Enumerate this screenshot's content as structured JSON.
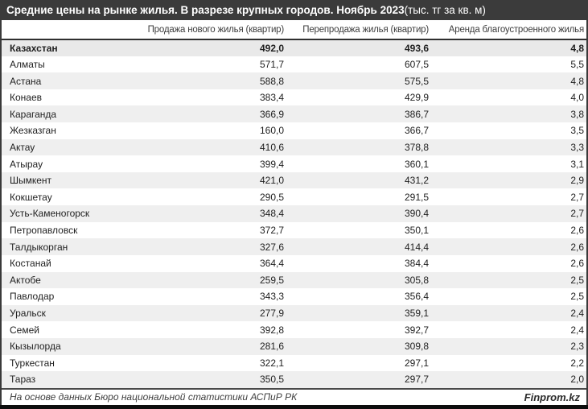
{
  "title": {
    "main": "Средние цены на рынке жилья. В разрезе крупных городов. Ноябрь 2023",
    "unit": " (тыс. тг за кв. м)"
  },
  "chart_data": {
    "type": "table",
    "title": "Средние цены на рынке жилья. В разрезе крупных городов. Ноябрь 2023 (тыс. тг за кв. м)",
    "columns": [
      "Продажа нового жилья (квартир)",
      "Перепродажа жилья (квартир)",
      "Аренда благоустроенного жилья"
    ],
    "row_label_column": "",
    "number_format": "one decimal, comma separator",
    "rows": [
      {
        "name": "Казахстан",
        "values": [
          492.0,
          493.6,
          4.8
        ],
        "is_total": true
      },
      {
        "name": "Алматы",
        "values": [
          571.7,
          607.5,
          5.5
        ]
      },
      {
        "name": "Астана",
        "values": [
          588.8,
          575.5,
          4.8
        ]
      },
      {
        "name": "Конаев",
        "values": [
          383.4,
          429.9,
          4.0
        ]
      },
      {
        "name": "Караганда",
        "values": [
          366.9,
          386.7,
          3.8
        ]
      },
      {
        "name": "Жезказган",
        "values": [
          160.0,
          366.7,
          3.5
        ]
      },
      {
        "name": "Актау",
        "values": [
          410.6,
          378.8,
          3.3
        ]
      },
      {
        "name": "Атырау",
        "values": [
          399.4,
          360.1,
          3.1
        ]
      },
      {
        "name": "Шымкент",
        "values": [
          421.0,
          431.2,
          2.9
        ]
      },
      {
        "name": "Кокшетау",
        "values": [
          290.5,
          291.5,
          2.7
        ]
      },
      {
        "name": "Усть-Каменогорск",
        "values": [
          348.4,
          390.4,
          2.7
        ]
      },
      {
        "name": "Петропавловск",
        "values": [
          372.7,
          350.1,
          2.6
        ]
      },
      {
        "name": "Талдыкорган",
        "values": [
          327.6,
          414.4,
          2.6
        ]
      },
      {
        "name": "Костанай",
        "values": [
          364.4,
          384.4,
          2.6
        ]
      },
      {
        "name": "Актобе",
        "values": [
          259.5,
          305.8,
          2.5
        ]
      },
      {
        "name": "Павлодар",
        "values": [
          343.3,
          356.4,
          2.5
        ]
      },
      {
        "name": "Уральск",
        "values": [
          277.9,
          359.1,
          2.4
        ]
      },
      {
        "name": "Семей",
        "values": [
          392.8,
          392.7,
          2.4
        ]
      },
      {
        "name": "Кызылорда",
        "values": [
          281.6,
          309.8,
          2.3
        ]
      },
      {
        "name": "Туркестан",
        "values": [
          322.1,
          297.1,
          2.2
        ]
      },
      {
        "name": "Тараз",
        "values": [
          350.5,
          297.7,
          2.0
        ]
      }
    ]
  },
  "footer": {
    "source": "На основе данных Бюро национальной статистики АСПиР РК",
    "brand": "Finprom.kz"
  },
  "colors": {
    "titlebar_bg": "#3b3b3b",
    "titlebar_text": "#ffffff",
    "band_row_bg": "#efefef",
    "total_row_bg": "#e9e9e9",
    "header_border": "#2f2f2f",
    "side_border": "#3a3a3a",
    "bottom_bar": "#0d0d0d",
    "body_text": "#1f1f1f"
  }
}
